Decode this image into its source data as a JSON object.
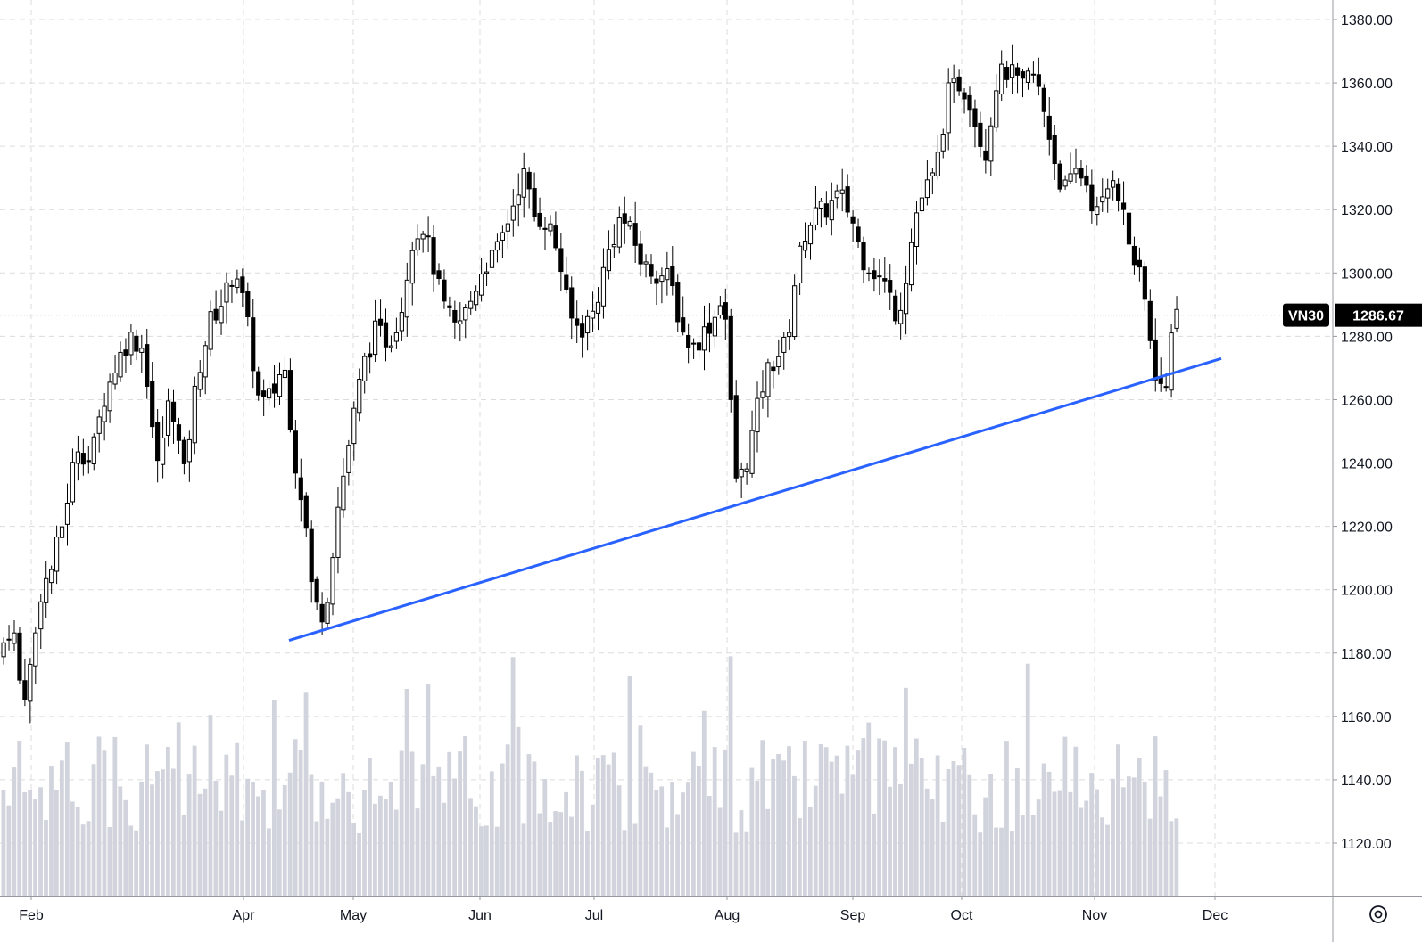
{
  "chart_data": {
    "type": "candlestick",
    "symbol": "VN30",
    "last_price": "1286.67",
    "ylim": [
      1105,
      1385
    ],
    "y_ticks": [
      "1120.00",
      "1140.00",
      "1160.00",
      "1180.00",
      "1200.00",
      "1220.00",
      "1240.00",
      "1260.00",
      "1280.00",
      "1300.00",
      "1320.00",
      "1340.00",
      "1360.00",
      "1380.00"
    ],
    "x_ticks": [
      "Feb",
      "Apr",
      "May",
      "Jun",
      "Jul",
      "Aug",
      "Sep",
      "Oct",
      "Nov",
      "Dec"
    ],
    "grid": true,
    "series": [
      {
        "name": "price",
        "description": "daily OHLC candles, black = down, white = up"
      },
      {
        "name": "volume",
        "description": "daily volume bars, grey, bottom overlay"
      }
    ],
    "key_points": [
      {
        "x": "Feb start",
        "y": 1164
      },
      {
        "x": "late Mar",
        "y": 1306
      },
      {
        "x": "late Apr low",
        "y": 1186
      },
      {
        "x": "mid Jun high",
        "y": 1340
      },
      {
        "x": "early Aug low",
        "y": 1227
      },
      {
        "x": "mid Oct high",
        "y": 1374
      },
      {
        "x": "late Nov low",
        "y": 1251
      },
      {
        "x": "last",
        "y": 1286.67
      }
    ],
    "trendline": {
      "from": {
        "x": "late Apr",
        "y": 1184
      },
      "to": {
        "x": "Dec",
        "y": 1273
      },
      "color": "#2962ff"
    },
    "colors": {
      "up_body": "#ffffff",
      "down_body": "#000000",
      "wick": "#000000",
      "volume": "#d1d4dc",
      "grid": "#dcdcdc",
      "trendline": "#2962ff"
    }
  },
  "ui": {
    "settings_icon": "settings-icon"
  }
}
